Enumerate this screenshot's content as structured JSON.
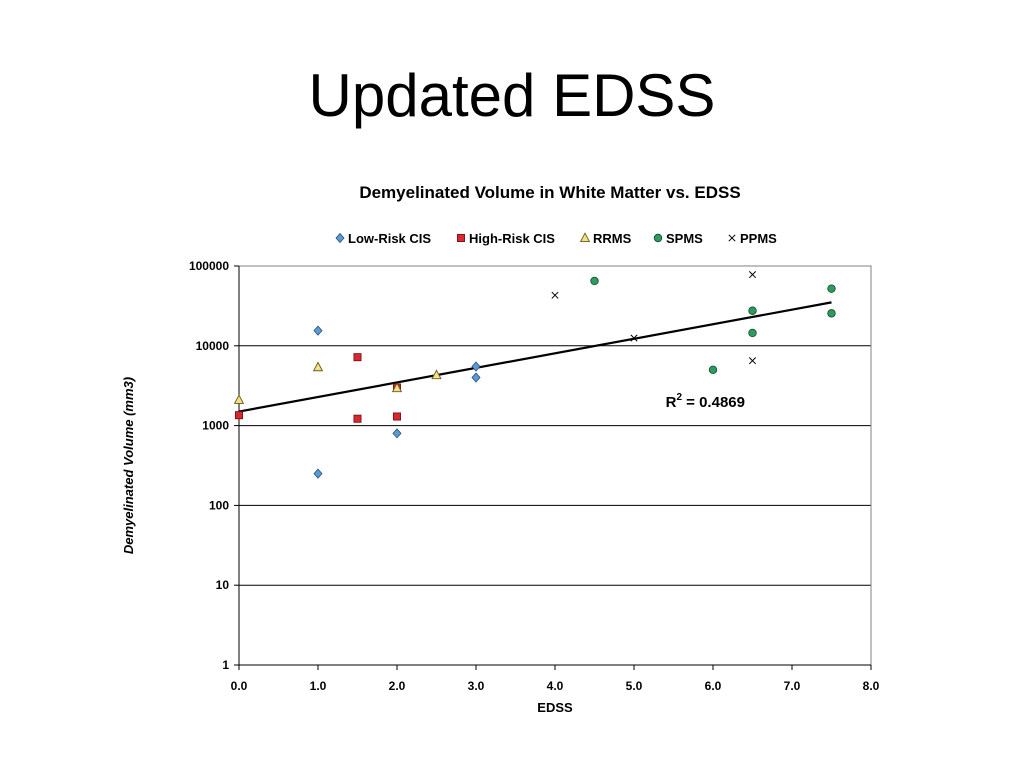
{
  "slide": {
    "title": "Updated EDSS"
  },
  "chart_data": {
    "type": "scatter",
    "title": "Demyelinated Volume in White Matter vs. EDSS",
    "xlabel": "EDSS",
    "ylabel": "Demyelinated Volume (mm3)",
    "xlim": [
      0,
      8
    ],
    "ylim": [
      1,
      100000
    ],
    "y_scale": "log",
    "grid": "horizontal",
    "legend_position": "top",
    "x_ticks": [
      "0.0",
      "1.0",
      "2.0",
      "3.0",
      "4.0",
      "5.0",
      "6.0",
      "7.0",
      "8.0"
    ],
    "y_ticks": [
      "1",
      "10",
      "100",
      "1000",
      "10000",
      "100000"
    ],
    "series": [
      {
        "name": "Low-Risk CIS",
        "marker": "diamond",
        "color": "#5b9bd5",
        "points": [
          [
            1.0,
            15500
          ],
          [
            1.0,
            250
          ],
          [
            2.0,
            800
          ],
          [
            3.0,
            5500
          ],
          [
            3.0,
            4000
          ]
        ]
      },
      {
        "name": "High-Risk CIS",
        "marker": "square",
        "color": "#d9262f",
        "points": [
          [
            0.0,
            1350
          ],
          [
            1.5,
            7200
          ],
          [
            1.5,
            1220
          ],
          [
            2.0,
            3000
          ],
          [
            2.0,
            1300
          ]
        ]
      },
      {
        "name": "RRMS",
        "marker": "triangle",
        "color": "#f3e08a",
        "points": [
          [
            0.0,
            2100
          ],
          [
            1.0,
            5400
          ],
          [
            2.0,
            2950
          ],
          [
            2.5,
            4300
          ]
        ]
      },
      {
        "name": "SPMS",
        "marker": "circle",
        "color": "#2e9a5e",
        "points": [
          [
            4.5,
            65000
          ],
          [
            6.0,
            5000
          ],
          [
            6.5,
            27500
          ],
          [
            6.5,
            14500
          ],
          [
            7.5,
            52000
          ],
          [
            7.5,
            25500
          ]
        ]
      },
      {
        "name": "PPMS",
        "marker": "x",
        "color": "#000000",
        "points": [
          [
            4.0,
            43000
          ],
          [
            5.0,
            12500
          ],
          [
            6.5,
            78000
          ],
          [
            6.5,
            6500
          ]
        ]
      }
    ],
    "trendline": {
      "type": "exponential",
      "from": [
        0.0,
        1500
      ],
      "to": [
        7.5,
        35000
      ],
      "color": "#000000"
    },
    "annotation": {
      "text_base": "R",
      "text_sup": "2",
      "text_rest": " = 0.4869",
      "at": [
        5.4,
        1700
      ]
    }
  }
}
